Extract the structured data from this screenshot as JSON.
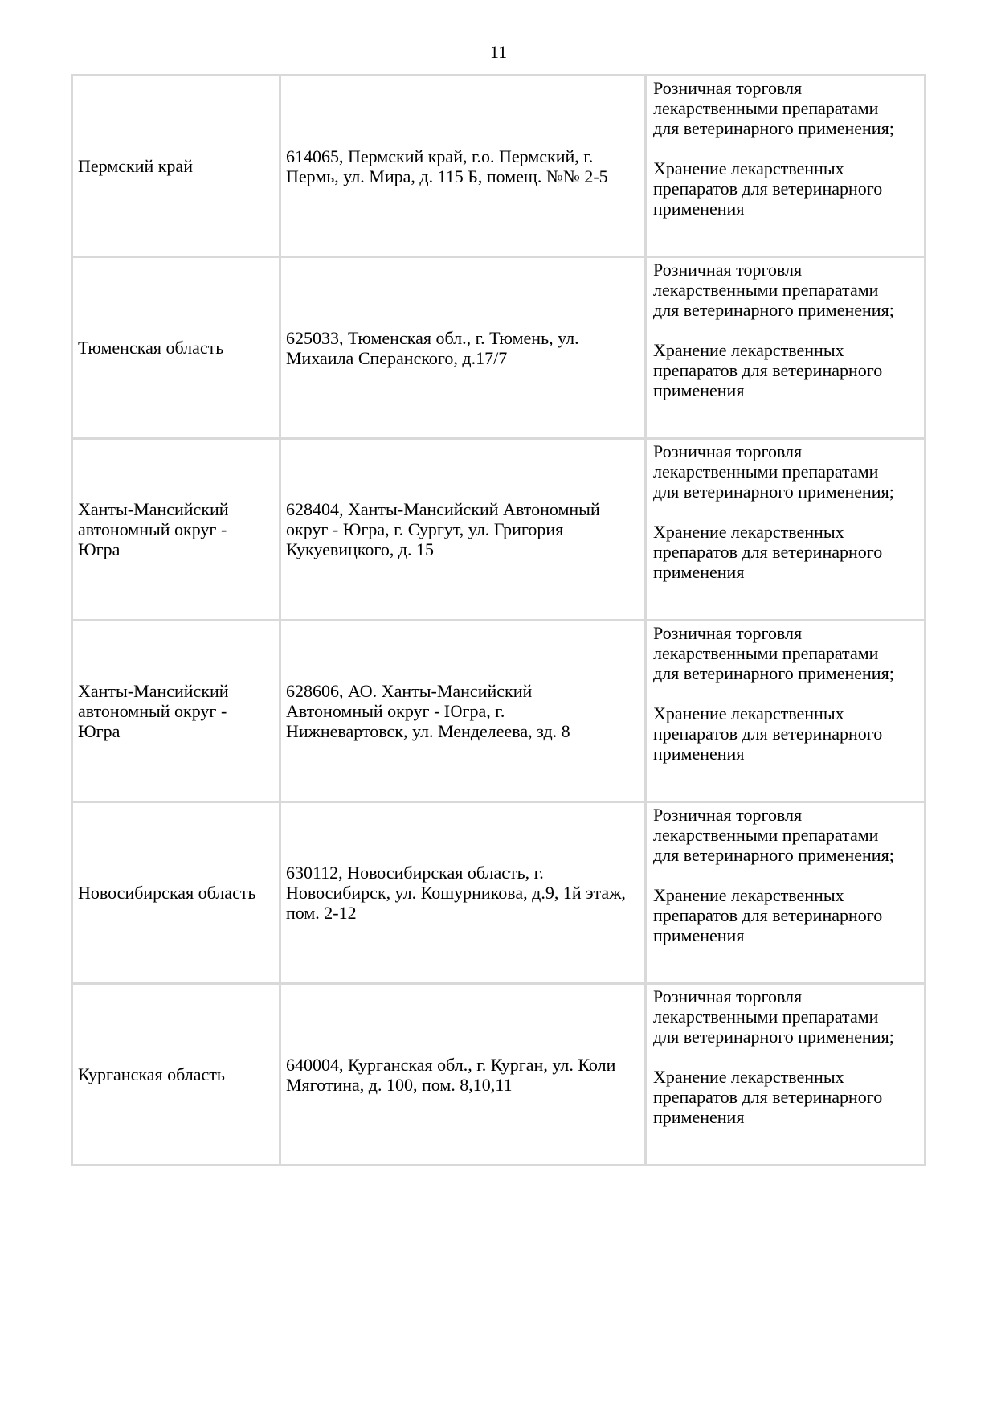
{
  "page": {
    "number": "11"
  },
  "colors": {
    "border": "#d9d9d9",
    "text": "#000000",
    "background": "#ffffff"
  },
  "table": {
    "rows": [
      {
        "region": "Пермский край",
        "address": "614065, Пермский край, г.о. Пермский, г. Пермь, ул. Мира, д. 115 Б, помещ. №№ 2-5",
        "activities": [
          "Розничная торговля лекарственными препаратами для ветеринарного применения;",
          "Хранение лекарственных препаратов для ветеринарного применения"
        ]
      },
      {
        "region": "Тюменская область",
        "address": "625033, Тюменская обл., г. Тюмень, ул. Михаила Сперанского, д.17/7",
        "activities": [
          "Розничная торговля лекарственными препаратами для ветеринарного применения;",
          "Хранение лекарственных препаратов для ветеринарного применения"
        ]
      },
      {
        "region": "Ханты-Мансийский автономный округ - Югра",
        "address": "628404, Ханты-Мансийский Автономный округ - Югра, г. Сургут, ул. Григория Кукуевицкого, д. 15",
        "activities": [
          "Розничная торговля лекарственными препаратами для ветеринарного применения;",
          "Хранение лекарственных препаратов для ветеринарного применения"
        ]
      },
      {
        "region": "Ханты-Мансийский автономный округ - Югра",
        "address": "628606, АО. Ханты-Мансийский Автономный округ - Югра, г. Нижневартовск, ул. Менделеева, зд. 8",
        "activities": [
          "Розничная торговля лекарственными препаратами для ветеринарного применения;",
          "Хранение лекарственных препаратов для ветеринарного применения"
        ]
      },
      {
        "region": "Новосибирская область",
        "address": "630112, Новосибирская область, г. Новосибирск, ул. Кошурникова, д.9, 1й этаж, пом. 2-12",
        "activities": [
          "Розничная торговля лекарственными препаратами для ветеринарного применения;",
          "Хранение лекарственных препаратов для ветеринарного применения"
        ]
      },
      {
        "region": "Курганская область",
        "address": "640004, Курганская обл., г. Курган, ул. Коли Мяготина, д. 100, пом. 8,10,11",
        "activities": [
          "Розничная торговля лекарственными препаратами для ветеринарного применения;",
          "Хранение лекарственных препаратов для ветеринарного применения"
        ]
      }
    ]
  }
}
